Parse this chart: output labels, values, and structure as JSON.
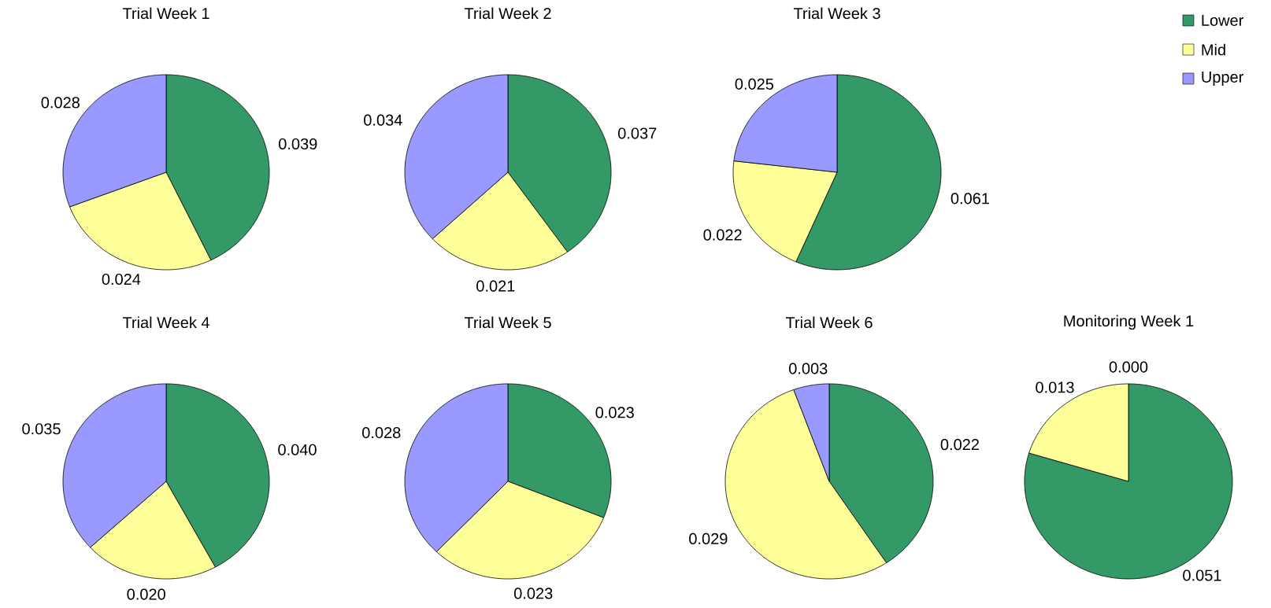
{
  "chart_data": [
    {
      "type": "pie",
      "title": "Trial Week 1",
      "categories": [
        "Lower",
        "Mid",
        "Upper"
      ],
      "values": [
        0.039,
        0.024,
        0.028
      ],
      "value_labels": [
        "0.039",
        "0.024",
        "0.028"
      ],
      "colors": [
        "#339966",
        "#ffff99",
        "#9999ff"
      ],
      "legend": "top right"
    },
    {
      "type": "pie",
      "title": "Trial Week 2",
      "values": [
        0.037,
        0.021,
        0.034
      ],
      "value_labels": [
        "0.037",
        "0.021",
        "0.034"
      ],
      "colors": [
        "#339966",
        "#ffff99",
        "#9999ff"
      ]
    },
    {
      "type": "pie",
      "title": "Trial Week 3",
      "values": [
        0.061,
        0.022,
        0.025
      ],
      "value_labels": [
        "0.061",
        "0.022",
        "0.025"
      ],
      "colors": [
        "#339966",
        "#ffff99",
        "#9999ff"
      ]
    },
    {
      "type": "pie",
      "title": "Trial Week 4",
      "values": [
        0.04,
        0.02,
        0.035
      ],
      "value_labels": [
        "0.040",
        "0.020",
        "0.035"
      ],
      "colors": [
        "#339966",
        "#ffff99",
        "#9999ff"
      ]
    },
    {
      "type": "pie",
      "title": "Trial Week 5",
      "values": [
        0.023,
        0.023,
        0.028
      ],
      "value_labels": [
        "0.023",
        "0.023",
        "0.028"
      ],
      "colors": [
        "#339966",
        "#ffff99",
        "#9999ff"
      ]
    },
    {
      "type": "pie",
      "title": "Trial Week 6",
      "values": [
        0.022,
        0.029,
        0.003
      ],
      "value_labels": [
        "0.022",
        "0.029",
        "0.003"
      ],
      "colors": [
        "#339966",
        "#ffff99",
        "#9999ff"
      ]
    },
    {
      "type": "pie",
      "title": "Monitoring Week 1",
      "values": [
        0.051,
        0.013,
        0.0
      ],
      "value_labels": [
        "0.051",
        "0.013",
        "0.000"
      ],
      "colors": [
        "#339966",
        "#ffff99",
        "#9999ff"
      ]
    }
  ]
}
